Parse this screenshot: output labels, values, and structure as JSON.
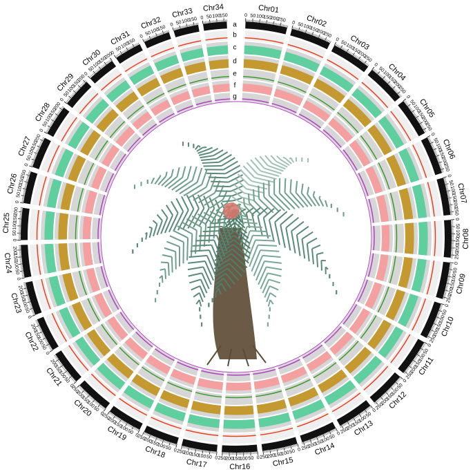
{
  "chart_data": {
    "type": "circos",
    "chromosomes": [
      {
        "name": "Chr01",
        "length": 300,
        "ticks": [
          0,
          50,
          100,
          150,
          200,
          250
        ]
      },
      {
        "name": "Chr02",
        "length": 290,
        "ticks": [
          0,
          50,
          100,
          150,
          200,
          250
        ]
      },
      {
        "name": "Chr03",
        "length": 285,
        "ticks": [
          0,
          50,
          100,
          150,
          200,
          250
        ]
      },
      {
        "name": "Chr04",
        "length": 280,
        "ticks": [
          0,
          50,
          100,
          150,
          200,
          250
        ]
      },
      {
        "name": "Chr05",
        "length": 275,
        "ticks": [
          0,
          50,
          100,
          150,
          200,
          250
        ]
      },
      {
        "name": "Chr06",
        "length": 275,
        "ticks": [
          0,
          50,
          100,
          150,
          200,
          250
        ]
      },
      {
        "name": "Chr07",
        "length": 270,
        "ticks": [
          0,
          50,
          100,
          150,
          200,
          250
        ]
      },
      {
        "name": "Chr08",
        "length": 270,
        "ticks": [
          0,
          50,
          100,
          150,
          200,
          250
        ]
      },
      {
        "name": "Chr09",
        "length": 265,
        "ticks": [
          0,
          50,
          100,
          150,
          200,
          250
        ]
      },
      {
        "name": "Chr10",
        "length": 265,
        "ticks": [
          0,
          50,
          100,
          150,
          200,
          250
        ]
      },
      {
        "name": "Chr11",
        "length": 265,
        "ticks": [
          0,
          50,
          100,
          150,
          200,
          250
        ]
      },
      {
        "name": "Chr12",
        "length": 260,
        "ticks": [
          0,
          50,
          100,
          150,
          200,
          250
        ]
      },
      {
        "name": "Chr13",
        "length": 260,
        "ticks": [
          0,
          50,
          100,
          150,
          200,
          250
        ]
      },
      {
        "name": "Chr14",
        "length": 260,
        "ticks": [
          0,
          50,
          100,
          150,
          200,
          250
        ]
      },
      {
        "name": "Chr15",
        "length": 255,
        "ticks": [
          0,
          50,
          100,
          150,
          200,
          250
        ]
      },
      {
        "name": "Chr16",
        "length": 255,
        "ticks": [
          0,
          50,
          100,
          150,
          200,
          250
        ]
      },
      {
        "name": "Chr17",
        "length": 255,
        "ticks": [
          0,
          50,
          100,
          150,
          200,
          250
        ]
      },
      {
        "name": "Chr18",
        "length": 250,
        "ticks": [
          0,
          50,
          100,
          150,
          200,
          250
        ]
      },
      {
        "name": "Chr19",
        "length": 250,
        "ticks": [
          0,
          50,
          100,
          150,
          200,
          250
        ]
      },
      {
        "name": "Chr20",
        "length": 250,
        "ticks": [
          0,
          50,
          100,
          150,
          200,
          250
        ]
      },
      {
        "name": "Chr21",
        "length": 245,
        "ticks": [
          0,
          50,
          100,
          150,
          200
        ]
      },
      {
        "name": "Chr22",
        "length": 245,
        "ticks": [
          0,
          50,
          100,
          150,
          200
        ]
      },
      {
        "name": "Chr23",
        "length": 240,
        "ticks": [
          0,
          50,
          100,
          150,
          200
        ]
      },
      {
        "name": "Chr24",
        "length": 235,
        "ticks": [
          0,
          50,
          100,
          150,
          200
        ]
      },
      {
        "name": "Chr25",
        "length": 230,
        "ticks": [
          0,
          50,
          100,
          150,
          200
        ]
      },
      {
        "name": "Chr26",
        "length": 230,
        "ticks": [
          0,
          50,
          100,
          150,
          200
        ]
      },
      {
        "name": "Chr27",
        "length": 225,
        "ticks": [
          0,
          50,
          100,
          150,
          200
        ]
      },
      {
        "name": "Chr28",
        "length": 220,
        "ticks": [
          0,
          50,
          100,
          150,
          200
        ]
      },
      {
        "name": "Chr29",
        "length": 210,
        "ticks": [
          0,
          50,
          100,
          150,
          200
        ]
      },
      {
        "name": "Chr30",
        "length": 200,
        "ticks": [
          0,
          50,
          100,
          150,
          200
        ]
      },
      {
        "name": "Chr31",
        "length": 195,
        "ticks": [
          0,
          50,
          100,
          150
        ]
      },
      {
        "name": "Chr32",
        "length": 190,
        "ticks": [
          0,
          50,
          100,
          150
        ]
      },
      {
        "name": "Chr33",
        "length": 180,
        "ticks": [
          0,
          50,
          100,
          150
        ]
      },
      {
        "name": "Chr34",
        "length": 170,
        "ticks": [
          0,
          50,
          100,
          150
        ]
      }
    ],
    "tracks": [
      {
        "label": "a",
        "color": "#111111"
      },
      {
        "label": "b",
        "color": "#e8401c"
      },
      {
        "label": "c",
        "color": "#5fcf9f"
      },
      {
        "label": "d",
        "color": "#c49a30"
      },
      {
        "label": "e",
        "color": "#3a9a28"
      },
      {
        "label": "f",
        "color": "#f4a0a0"
      },
      {
        "label": "g",
        "color": "#b040c0"
      }
    ]
  }
}
